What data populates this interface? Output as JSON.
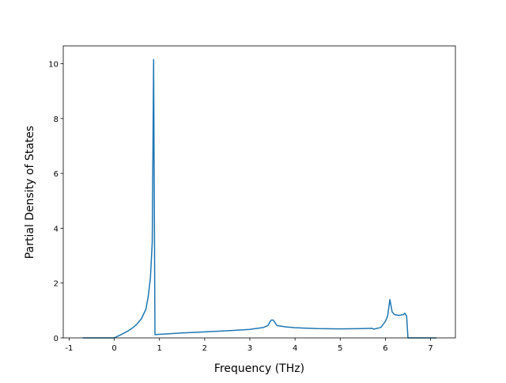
{
  "chart_data": {
    "type": "line",
    "xlabel": "Frequency (THz)",
    "ylabel": "Partial Density of States",
    "x": [
      -0.7,
      0,
      0.1,
      0.2,
      0.3,
      0.4,
      0.5,
      0.6,
      0.7,
      0.75,
      0.8,
      0.84,
      0.87,
      0.9,
      1.0,
      1.5,
      2,
      2.5,
      3,
      3.3,
      3.4,
      3.47,
      3.52,
      3.6,
      3.8,
      4,
      4.5,
      5,
      5.5,
      5.7,
      5.75,
      5.9,
      6.0,
      6.05,
      6.1,
      6.15,
      6.2,
      6.3,
      6.4,
      6.43,
      6.47,
      6.5,
      7.13
    ],
    "series": [
      {
        "color": "#1f77b4",
        "values": [
          0,
          0,
          0.08,
          0.16,
          0.25,
          0.36,
          0.5,
          0.7,
          1.05,
          1.5,
          2.2,
          3.5,
          10.15,
          0.12,
          0.13,
          0.18,
          0.22,
          0.26,
          0.31,
          0.38,
          0.45,
          0.65,
          0.65,
          0.45,
          0.4,
          0.37,
          0.34,
          0.33,
          0.34,
          0.35,
          0.32,
          0.38,
          0.6,
          0.8,
          1.4,
          0.95,
          0.85,
          0.82,
          0.85,
          0.9,
          0.8,
          0,
          0
        ]
      }
    ],
    "xlim": [
      -1.13,
      7.55
    ],
    "ylim": [
      0,
      10.65
    ],
    "xticks": [
      -1,
      0,
      1,
      2,
      3,
      4,
      5,
      6,
      7
    ],
    "yticks": [
      0,
      2,
      4,
      6,
      8,
      10
    ]
  }
}
